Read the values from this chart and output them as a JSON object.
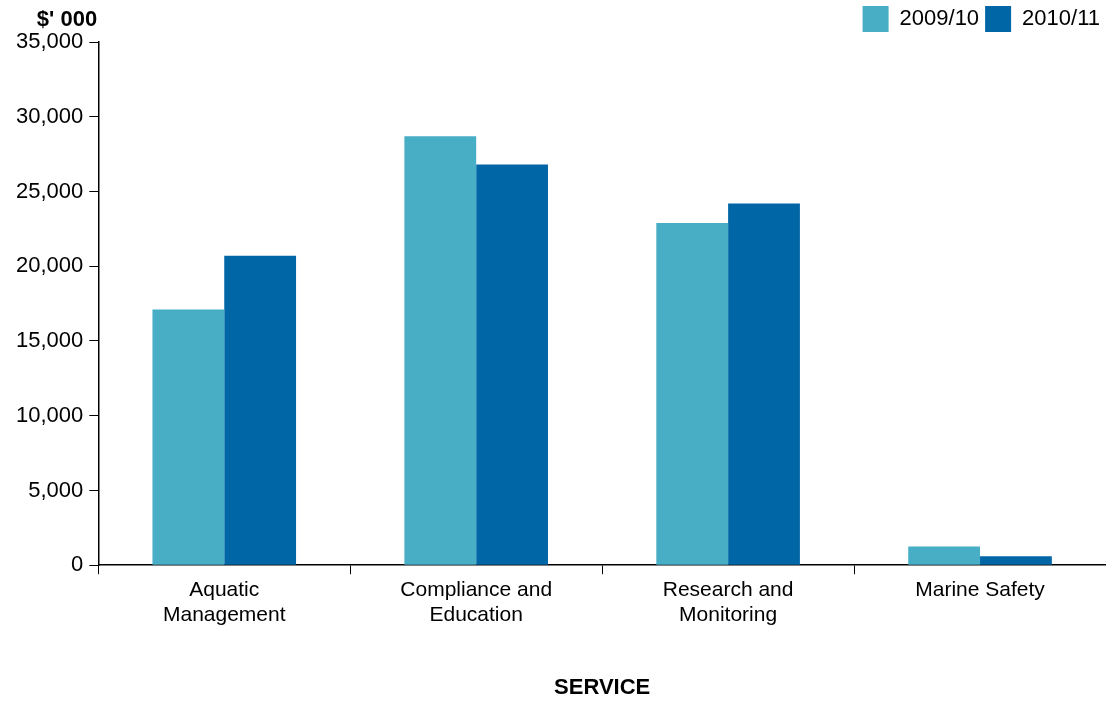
{
  "chart_data": {
    "type": "bar",
    "ylabel": "$' 000",
    "xlabel": "SERVICE",
    "categories": [
      "Aquatic Management",
      "Compliance and Education",
      "Research and Monitoring",
      "Marine Safety"
    ],
    "series": [
      {
        "name": "2009/10",
        "color": "#47aec6",
        "values": [
          17100,
          28700,
          22900,
          1250
        ]
      },
      {
        "name": "2010/11",
        "color": "#0066a6",
        "values": [
          20700,
          26800,
          24200,
          600
        ]
      }
    ],
    "ylim": [
      0,
      35000
    ],
    "yticks": [
      {
        "value": 0,
        "label": "0"
      },
      {
        "value": 5000,
        "label": "5,000"
      },
      {
        "value": 10000,
        "label": "10,000"
      },
      {
        "value": 15000,
        "label": "15,000"
      },
      {
        "value": 20000,
        "label": "20,000"
      },
      {
        "value": 25000,
        "label": "25,000"
      },
      {
        "value": 30000,
        "label": "30,000"
      },
      {
        "value": 35000,
        "label": "35,000"
      }
    ],
    "legend": "top right"
  }
}
